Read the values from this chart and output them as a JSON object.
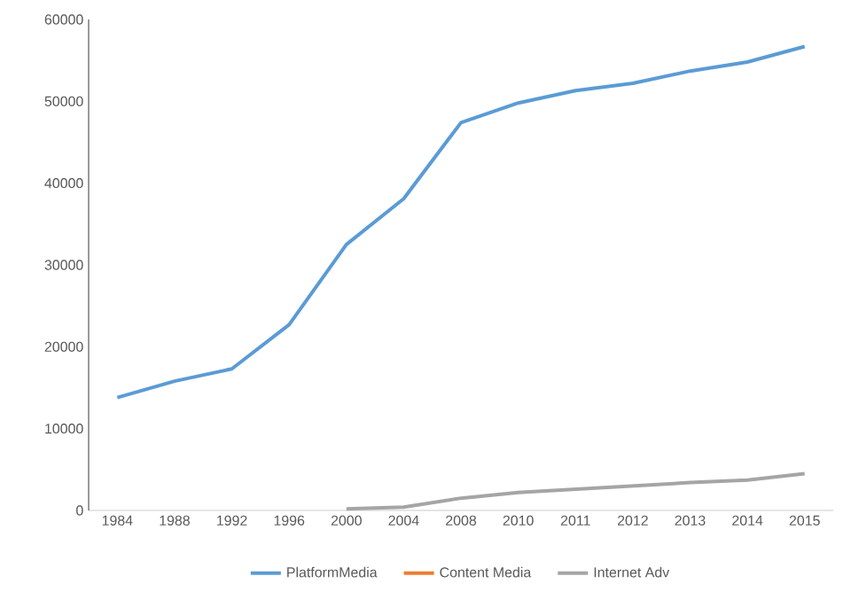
{
  "chart_data": {
    "type": "line",
    "categories": [
      "1984",
      "1988",
      "1992",
      "1996",
      "2000",
      "2004",
      "2008",
      "2010",
      "2011",
      "2012",
      "2013",
      "2014",
      "2015"
    ],
    "series": [
      {
        "name": "PlatformMedia",
        "color": "#5b9bd5",
        "values": [
          13800,
          15800,
          17300,
          22700,
          32500,
          38100,
          47400,
          49800,
          51300,
          52200,
          53700,
          54800,
          56700
        ]
      },
      {
        "name": "Content Media",
        "color": "#ed7d31",
        "values": [
          null,
          null,
          null,
          null,
          null,
          null,
          null,
          null,
          null,
          null,
          null,
          null,
          null
        ]
      },
      {
        "name": "Internet Adv",
        "color": "#a5a5a5",
        "values": [
          null,
          null,
          null,
          null,
          200,
          400,
          1500,
          2200,
          2600,
          3000,
          3400,
          3700,
          4500
        ]
      }
    ],
    "ylim": [
      0,
      60000
    ],
    "yticks": [
      0,
      10000,
      20000,
      30000,
      40000,
      50000,
      60000
    ],
    "legend": "bottom",
    "marker": "none"
  }
}
